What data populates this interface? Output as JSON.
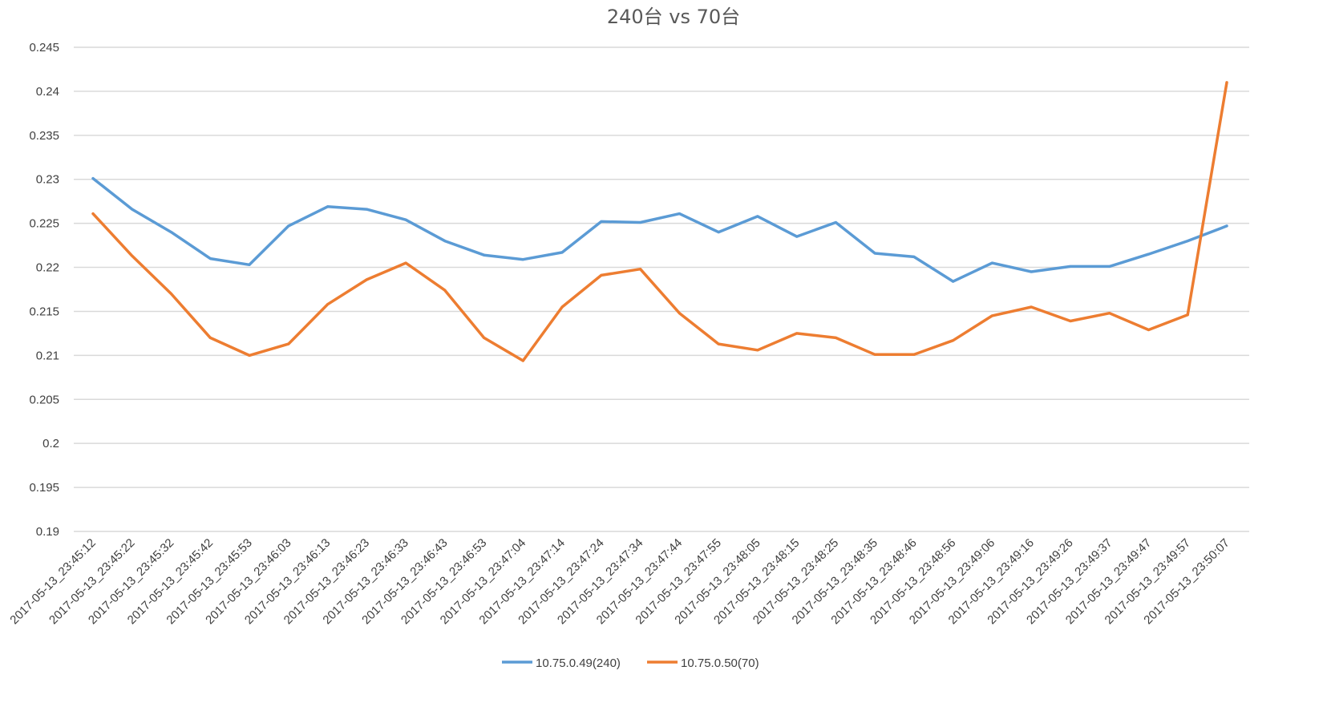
{
  "chart_data": {
    "type": "line",
    "title": "240台 vs 70台",
    "xlabel": "",
    "ylabel": "",
    "ylim": [
      0.19,
      0.245
    ],
    "ytick_step": 0.005,
    "yticks": [
      "0.19",
      "0.195",
      "0.2",
      "0.205",
      "0.21",
      "0.215",
      "0.22",
      "0.225",
      "0.23",
      "0.235",
      "0.24",
      "0.245"
    ],
    "grid": true,
    "legend_position": "bottom",
    "categories": [
      "2017-05-13_23:45:12",
      "2017-05-13_23:45:22",
      "2017-05-13_23:45:32",
      "2017-05-13_23:45:42",
      "2017-05-13_23:45:53",
      "2017-05-13_23:46:03",
      "2017-05-13_23:46:13",
      "2017-05-13_23:46:23",
      "2017-05-13_23:46:33",
      "2017-05-13_23:46:43",
      "2017-05-13_23:46:53",
      "2017-05-13_23:47:04",
      "2017-05-13_23:47:14",
      "2017-05-13_23:47:24",
      "2017-05-13_23:47:34",
      "2017-05-13_23:47:44",
      "2017-05-13_23:47:55",
      "2017-05-13_23:48:05",
      "2017-05-13_23:48:15",
      "2017-05-13_23:48:25",
      "2017-05-13_23:48:35",
      "2017-05-13_23:48:46",
      "2017-05-13_23:48:56",
      "2017-05-13_23:49:06",
      "2017-05-13_23:49:16",
      "2017-05-13_23:49:26",
      "2017-05-13_23:49:37",
      "2017-05-13_23:49:47",
      "2017-05-13_23:49:57",
      "2017-05-13_23:50:07"
    ],
    "series": [
      {
        "name": "10.75.0.49(240)",
        "color": "#5b9bd5",
        "values": [
          0.2301,
          0.2266,
          0.224,
          0.221,
          0.2203,
          0.2247,
          0.2269,
          0.2266,
          0.2254,
          0.223,
          0.2214,
          0.2209,
          0.2217,
          0.2252,
          0.2251,
          0.2261,
          0.224,
          0.2258,
          0.2235,
          0.2251,
          0.2216,
          0.2212,
          0.2184,
          0.2205,
          0.2195,
          0.2201,
          0.2201,
          0.2215,
          0.223,
          0.2247
        ]
      },
      {
        "name": "10.75.0.50(70)",
        "color": "#ed7d31",
        "values": [
          0.2261,
          0.2213,
          0.217,
          0.212,
          0.21,
          0.2113,
          0.2158,
          0.2186,
          0.2205,
          0.2174,
          0.212,
          0.2094,
          0.2155,
          0.2191,
          0.2198,
          0.2148,
          0.2113,
          0.2106,
          0.2125,
          0.212,
          0.2101,
          0.2101,
          0.2117,
          0.2145,
          0.2155,
          0.2139,
          0.2148,
          0.2129,
          0.2146,
          0.241
        ]
      }
    ]
  }
}
